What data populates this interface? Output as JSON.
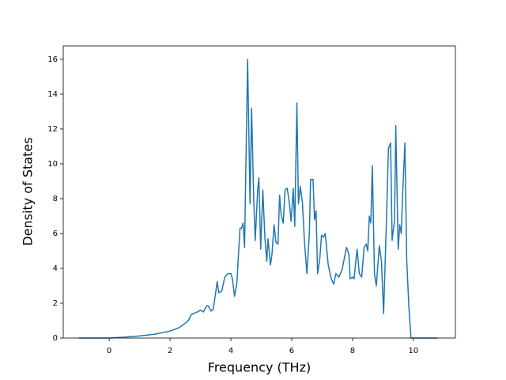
{
  "chart_data": {
    "type": "line",
    "xlabel": "Frequency (THz)",
    "ylabel": "Density of States",
    "color": "#1f77b4",
    "x": [
      -1,
      0,
      0.5,
      1,
      1.5,
      2,
      2.3,
      2.5,
      2.6,
      2.7,
      2.9,
      3.0,
      3.1,
      3.2,
      3.25,
      3.35,
      3.42,
      3.5,
      3.55,
      3.6,
      3.7,
      3.8,
      3.9,
      4.0,
      4.05,
      4.12,
      4.2,
      4.25,
      4.3,
      4.35,
      4.4,
      4.45,
      4.55,
      4.63,
      4.68,
      4.75,
      4.8,
      4.88,
      4.92,
      4.98,
      5.05,
      5.12,
      5.18,
      5.22,
      5.3,
      5.35,
      5.42,
      5.48,
      5.55,
      5.6,
      5.65,
      5.72,
      5.78,
      5.85,
      5.92,
      5.98,
      6.05,
      6.1,
      6.17,
      6.22,
      6.28,
      6.35,
      6.42,
      6.5,
      6.58,
      6.62,
      6.7,
      6.75,
      6.8,
      6.85,
      6.92,
      6.98,
      7.05,
      7.1,
      7.2,
      7.3,
      7.38,
      7.45,
      7.55,
      7.65,
      7.72,
      7.8,
      7.88,
      7.92,
      8.0,
      8.05,
      8.1,
      8.15,
      8.22,
      8.3,
      8.38,
      8.45,
      8.5,
      8.55,
      8.6,
      8.65,
      8.72,
      8.78,
      8.88,
      8.95,
      9.02,
      9.1,
      9.18,
      9.25,
      9.3,
      9.38,
      9.42,
      9.5,
      9.55,
      9.6,
      9.65,
      9.72,
      9.78,
      9.85,
      9.92,
      10.8
    ],
    "values": [
      0,
      0,
      0.05,
      0.12,
      0.22,
      0.4,
      0.6,
      0.85,
      1.0,
      1.35,
      1.5,
      1.6,
      1.5,
      1.85,
      1.85,
      1.55,
      1.65,
      2.6,
      3.25,
      2.6,
      2.7,
      3.5,
      3.7,
      3.7,
      3.4,
      2.4,
      3.2,
      4.8,
      6.3,
      6.3,
      6.6,
      5.2,
      16.0,
      7.7,
      13.2,
      8.0,
      5.6,
      8.5,
      9.2,
      5.1,
      8.5,
      5.7,
      4.4,
      5.7,
      4.2,
      4.8,
      6.5,
      5.5,
      5.4,
      8.2,
      7.1,
      6.6,
      8.5,
      8.6,
      7.8,
      6.7,
      8.6,
      6.4,
      13.5,
      7.7,
      8.7,
      7.8,
      5.5,
      3.7,
      6.0,
      9.1,
      9.1,
      6.8,
      7.3,
      3.7,
      4.5,
      5.9,
      5.8,
      6.0,
      4.2,
      3.4,
      3.1,
      3.7,
      3.5,
      3.9,
      4.5,
      5.2,
      4.8,
      3.4,
      3.5,
      3.4,
      4.3,
      5.1,
      3.7,
      3.5,
      5.2,
      5.4,
      5.0,
      7.0,
      6.6,
      9.9,
      3.7,
      3.0,
      5.3,
      4.4,
      1.4,
      6.0,
      10.9,
      11.2,
      5.6,
      6.8,
      12.2,
      5.1,
      6.5,
      6.0,
      8.4,
      11.2,
      4.5,
      1.8,
      0,
      0
    ],
    "xlim": [
      -1.51,
      11.38
    ],
    "ylim": [
      0,
      16.77
    ],
    "xticks": [
      0,
      2,
      4,
      6,
      8,
      10
    ],
    "yticks": [
      0,
      2,
      4,
      6,
      8,
      10,
      12,
      14,
      16
    ]
  }
}
